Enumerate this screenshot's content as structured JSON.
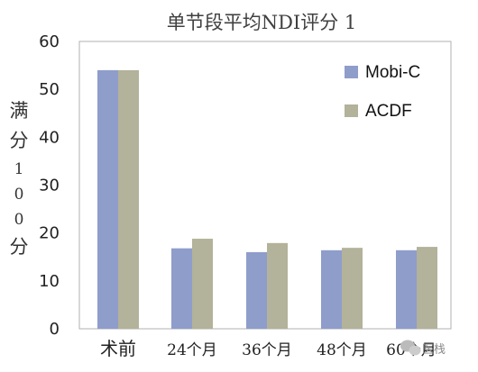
{
  "chart_data": {
    "type": "bar",
    "title": "单节段平均NDI评分 1",
    "ylabel": [
      "满",
      "分",
      "1",
      "0",
      "0",
      "分"
    ],
    "xlabel": "",
    "categories": [
      "术前",
      "24个月",
      "36个月",
      "48个月",
      "60个月"
    ],
    "series": [
      {
        "name": "Mobi-C",
        "values": [
          54,
          16.8,
          16.0,
          16.4,
          16.4
        ],
        "color": "#8f9dcb"
      },
      {
        "name": "ACDF",
        "values": [
          54,
          18.8,
          17.9,
          16.9,
          17.1
        ],
        "color": "#b3b29a"
      }
    ],
    "ylim": [
      0,
      60
    ],
    "yticks": [
      0,
      10,
      20,
      30,
      40,
      50,
      60
    ],
    "grid": false,
    "legend_position": "top-right"
  },
  "watermark": {
    "text": "医栈",
    "icon": "wechat-icon"
  }
}
